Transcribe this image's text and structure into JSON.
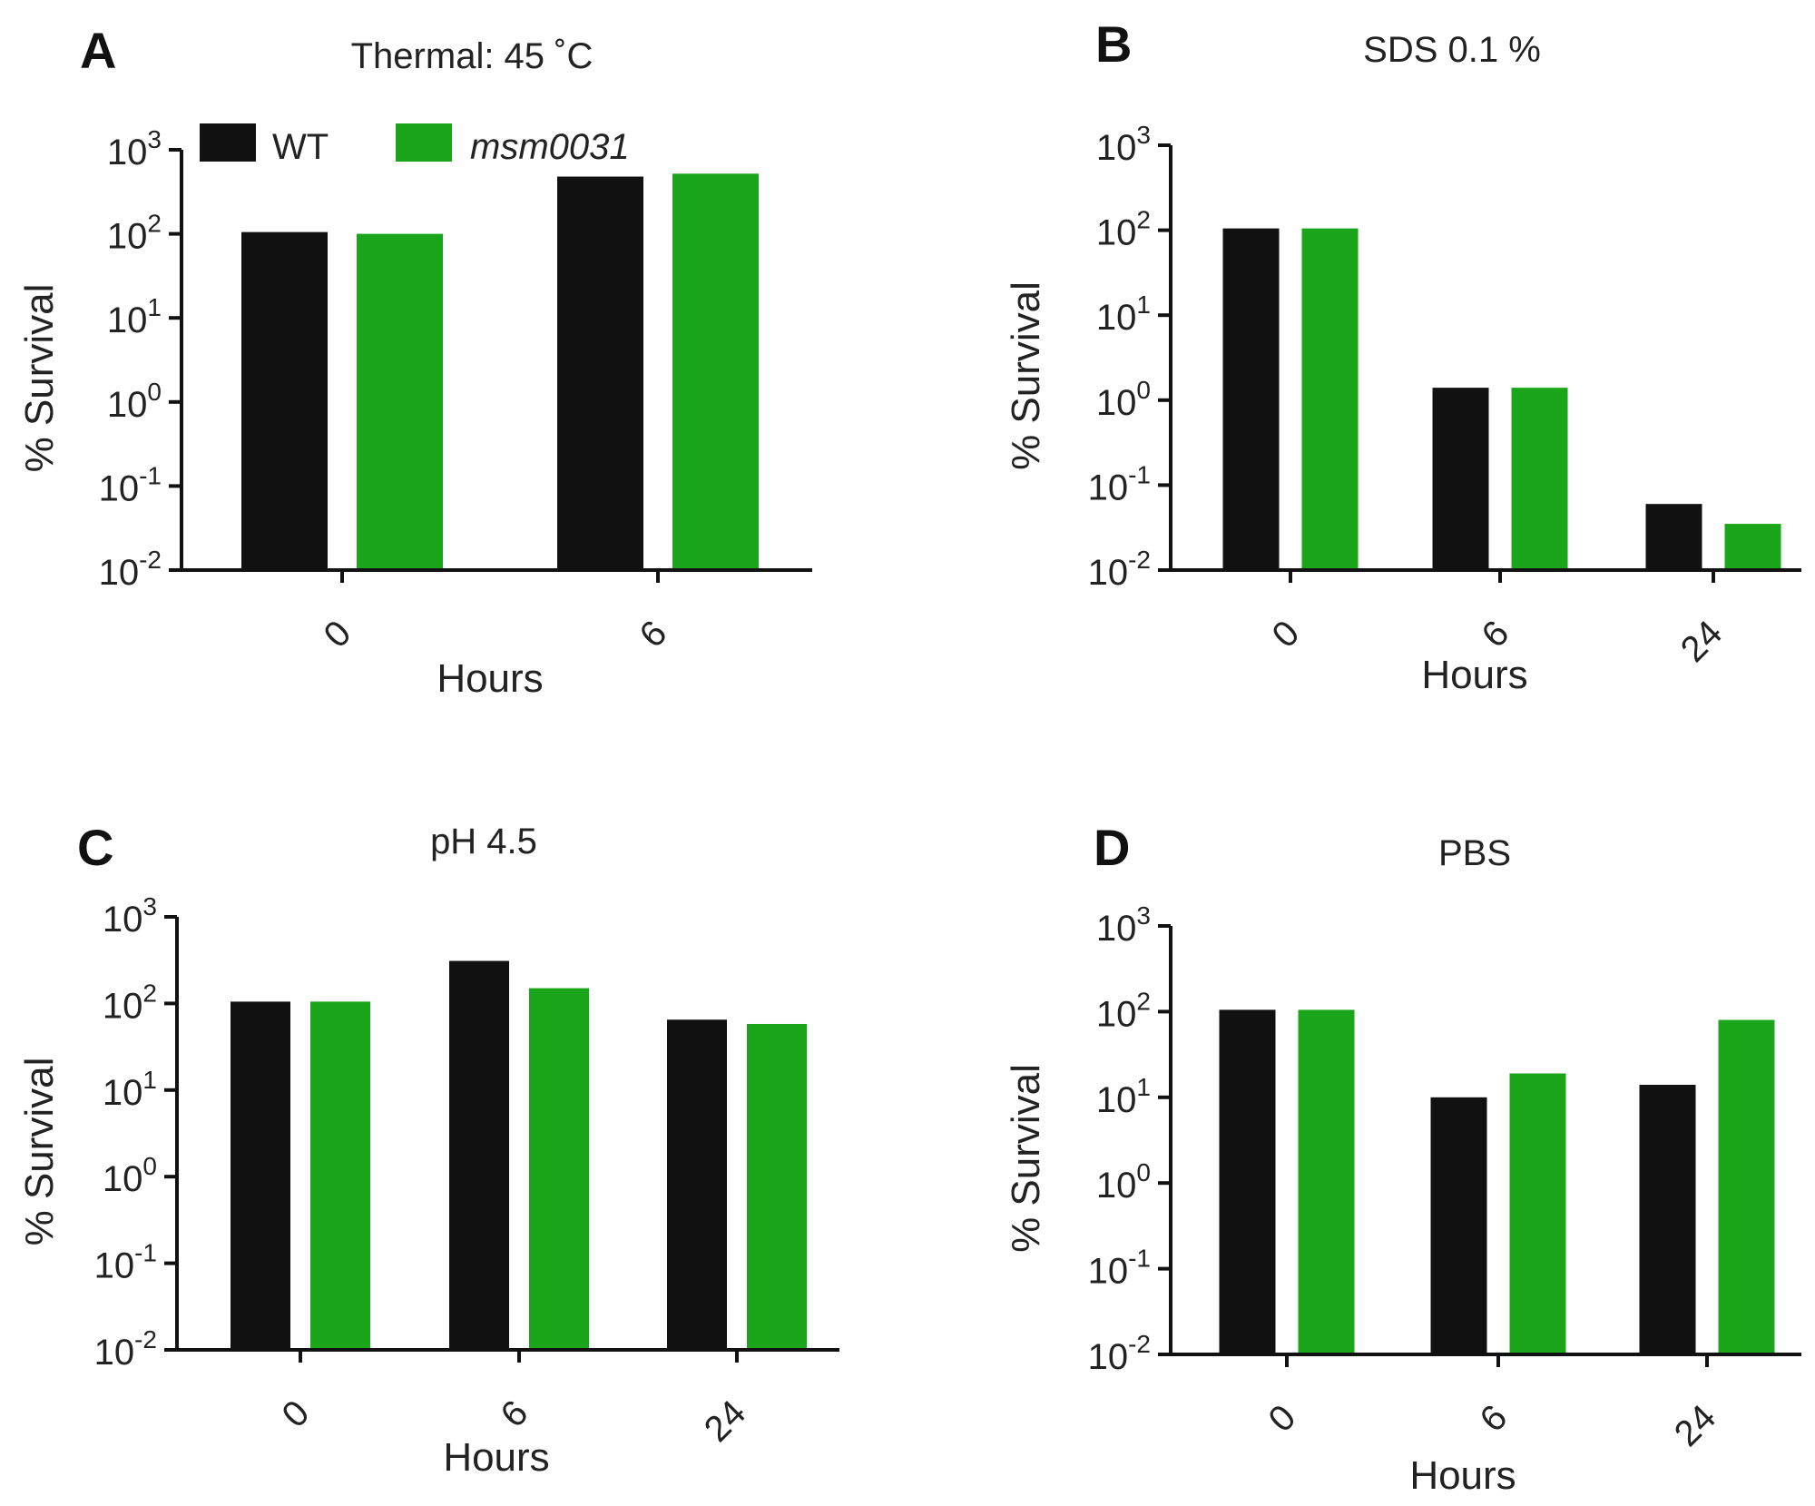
{
  "legend": {
    "entries": [
      {
        "name": "WT",
        "color": "#111111",
        "italic": false
      },
      {
        "name": "msm0031",
        "color": "#1aa51a",
        "italic": true
      }
    ]
  },
  "chart_data": [
    {
      "type": "bar",
      "panel_label": "A",
      "title": "Thermal: 45 ˚C",
      "xlabel": "Hours",
      "ylabel": "% Survival",
      "scale": "log",
      "ylim": [
        0.01,
        1000
      ],
      "yticks": [
        {
          "base": "10",
          "exp": "-2"
        },
        {
          "base": "10",
          "exp": "-1"
        },
        {
          "base": "10",
          "exp": "0"
        },
        {
          "base": "10",
          "exp": "1"
        },
        {
          "base": "10",
          "exp": "2"
        },
        {
          "base": "10",
          "exp": "3"
        }
      ],
      "categories": [
        "0",
        "6"
      ],
      "series": [
        {
          "name": "WT",
          "values": [
            105,
            480
          ]
        },
        {
          "name": "msm0031",
          "values": [
            100,
            520
          ]
        }
      ]
    },
    {
      "type": "bar",
      "panel_label": "B",
      "title": "SDS 0.1 %",
      "xlabel": "Hours",
      "ylabel": "% Survival",
      "scale": "log",
      "ylim": [
        0.01,
        1000
      ],
      "yticks": [
        {
          "base": "10",
          "exp": "-2"
        },
        {
          "base": "10",
          "exp": "-1"
        },
        {
          "base": "10",
          "exp": "0"
        },
        {
          "base": "10",
          "exp": "1"
        },
        {
          "base": "10",
          "exp": "2"
        },
        {
          "base": "10",
          "exp": "3"
        }
      ],
      "categories": [
        "0",
        "6",
        "24"
      ],
      "series": [
        {
          "name": "WT",
          "values": [
            105,
            1.4,
            0.06
          ]
        },
        {
          "name": "msm0031",
          "values": [
            105,
            1.4,
            0.035
          ]
        }
      ]
    },
    {
      "type": "bar",
      "panel_label": "C",
      "title": "pH 4.5",
      "xlabel": "Hours",
      "ylabel": "% Survival",
      "scale": "log",
      "ylim": [
        0.01,
        1000
      ],
      "yticks": [
        {
          "base": "10",
          "exp": "-2"
        },
        {
          "base": "10",
          "exp": "-1"
        },
        {
          "base": "10",
          "exp": "0"
        },
        {
          "base": "10",
          "exp": "1"
        },
        {
          "base": "10",
          "exp": "2"
        },
        {
          "base": "10",
          "exp": "3"
        }
      ],
      "categories": [
        "0",
        "6",
        "24"
      ],
      "series": [
        {
          "name": "WT",
          "values": [
            105,
            310,
            65
          ]
        },
        {
          "name": "msm0031",
          "values": [
            105,
            150,
            58
          ]
        }
      ]
    },
    {
      "type": "bar",
      "panel_label": "D",
      "title": "PBS",
      "xlabel": "Hours",
      "ylabel": "% Survival",
      "scale": "log",
      "ylim": [
        0.01,
        1000
      ],
      "yticks": [
        {
          "base": "10",
          "exp": "-2"
        },
        {
          "base": "10",
          "exp": "-1"
        },
        {
          "base": "10",
          "exp": "0"
        },
        {
          "base": "10",
          "exp": "1"
        },
        {
          "base": "10",
          "exp": "2"
        },
        {
          "base": "10",
          "exp": "3"
        }
      ],
      "categories": [
        "0",
        "6",
        "24"
      ],
      "series": [
        {
          "name": "WT",
          "values": [
            105,
            10,
            14
          ]
        },
        {
          "name": "msm0031",
          "values": [
            105,
            19,
            80
          ]
        }
      ]
    }
  ]
}
